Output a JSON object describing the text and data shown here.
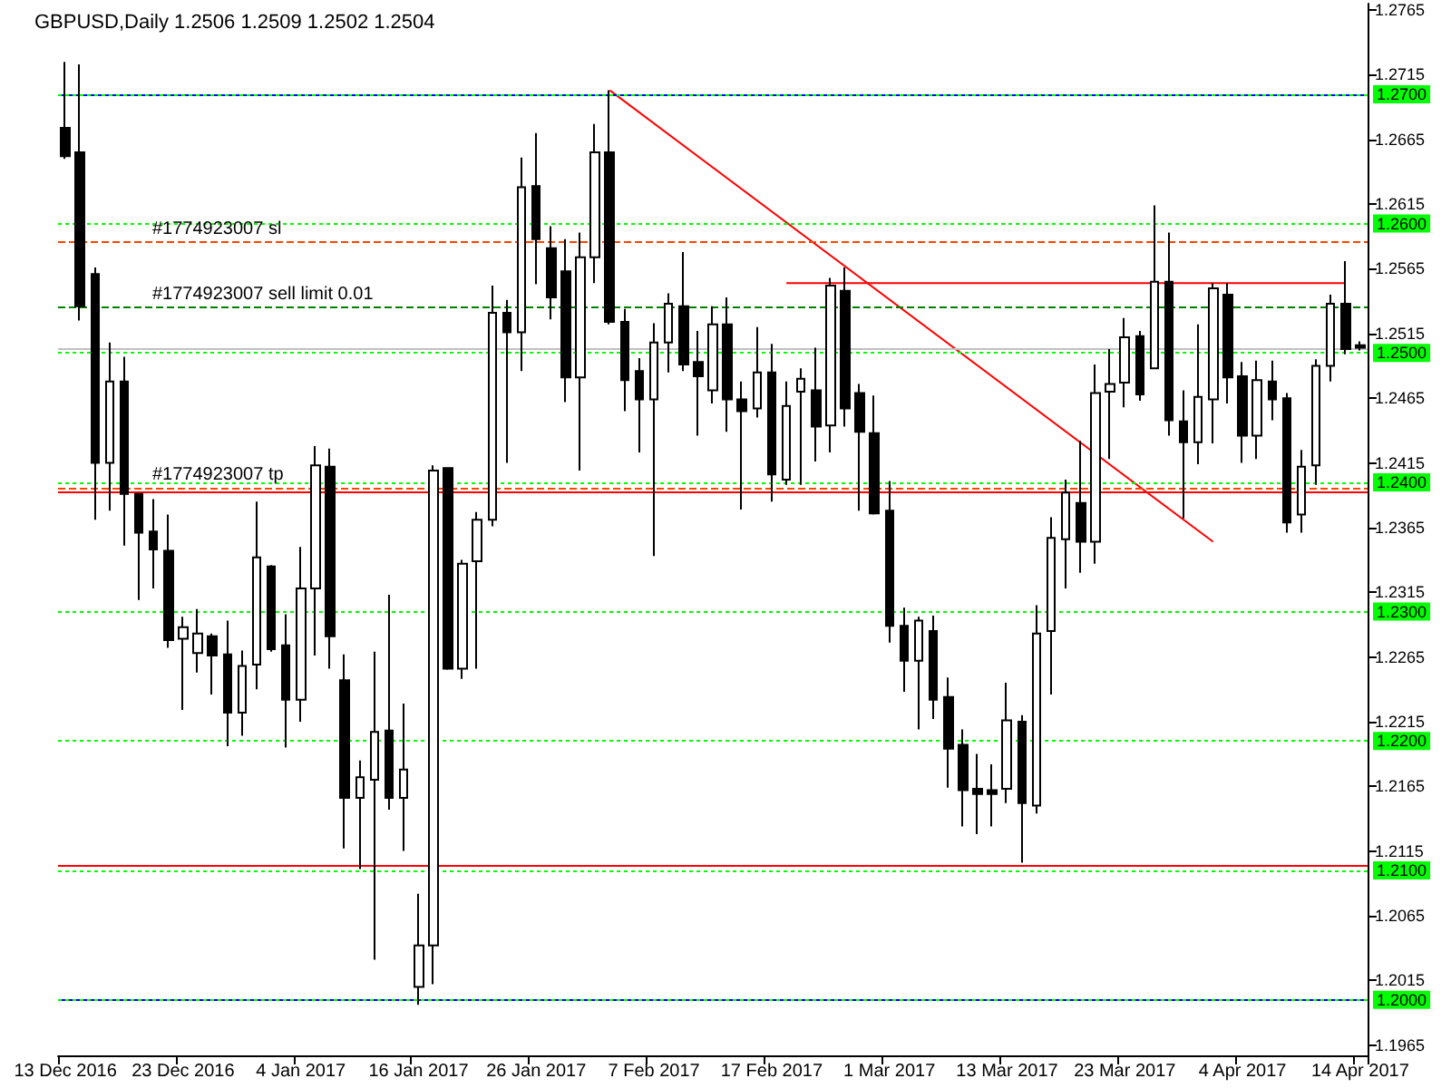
{
  "chart_data": {
    "type": "candlestick",
    "title": "GBPUSD,Daily 1.2506 1.2509 1.2502 1.2504",
    "categories": [
      "13 Dec 2016",
      null,
      null,
      null,
      null,
      null,
      null,
      null,
      "23 Dec 2016",
      null,
      null,
      null,
      null,
      null,
      null,
      null,
      "4 Jan 2017",
      null,
      null,
      null,
      null,
      null,
      null,
      null,
      "16 Jan 2017",
      null,
      null,
      null,
      null,
      null,
      null,
      null,
      "26 Jan 2017",
      null,
      null,
      null,
      null,
      null,
      null,
      null,
      "7 Feb 2017",
      null,
      null,
      null,
      null,
      null,
      null,
      null,
      "17 Feb 2017",
      null,
      null,
      null,
      null,
      null,
      null,
      null,
      "1 Mar 2017",
      null,
      null,
      null,
      null,
      null,
      null,
      null,
      "13 Mar 2017",
      null,
      null,
      null,
      null,
      null,
      null,
      null,
      "23 Mar 2017",
      null,
      null,
      null,
      null,
      null,
      null,
      null,
      "4 Apr 2017",
      null,
      null,
      null,
      null,
      null,
      null,
      null,
      "14 Apr 2017"
    ],
    "color": "#000000",
    "ohlc": [
      [
        1.2674,
        1.2725,
        1.265,
        1.2652
      ],
      [
        1.2655,
        1.2723,
        1.2525,
        1.2536
      ],
      [
        1.2561,
        1.2566,
        1.2371,
        1.2415
      ],
      [
        1.2415,
        1.2508,
        1.2378,
        1.2478
      ],
      [
        1.2478,
        1.2497,
        1.2351,
        1.2391
      ],
      [
        1.2391,
        1.2391,
        1.2309,
        1.2361
      ],
      [
        1.2362,
        1.2387,
        1.2318,
        1.2348
      ],
      [
        1.2347,
        1.2375,
        1.2272,
        1.2278
      ],
      [
        1.2279,
        1.2296,
        1.2224,
        1.2288
      ],
      [
        1.2268,
        1.2302,
        1.2253,
        1.2283
      ],
      [
        1.2281,
        1.2283,
        1.2236,
        1.2266
      ],
      [
        1.2267,
        1.2293,
        1.2196,
        1.2222
      ],
      [
        1.2222,
        1.227,
        1.2204,
        1.2258
      ],
      [
        1.2259,
        1.2385,
        1.224,
        1.2342
      ],
      [
        1.2335,
        1.2336,
        1.2269,
        1.2271
      ],
      [
        1.2274,
        1.2298,
        1.2195,
        1.2232
      ],
      [
        1.2232,
        1.235,
        1.2215,
        1.2318
      ],
      [
        1.2318,
        1.2428,
        1.2266,
        1.2413
      ],
      [
        1.2412,
        1.2426,
        1.2256,
        1.2281
      ],
      [
        1.2247,
        1.2267,
        1.2117,
        1.2156
      ],
      [
        1.2156,
        1.2185,
        1.2101,
        1.2172
      ],
      [
        1.217,
        1.2269,
        1.2031,
        1.2207
      ],
      [
        1.2208,
        1.2313,
        1.2147,
        1.2156
      ],
      [
        1.2156,
        1.2229,
        1.2115,
        1.2178
      ],
      [
        1.201,
        1.2082,
        1.1996,
        1.2042
      ],
      [
        1.2042,
        1.2413,
        1.2012,
        1.2409
      ],
      [
        1.2411,
        1.2411,
        1.2255,
        1.2256
      ],
      [
        1.2256,
        1.234,
        1.2248,
        1.2337
      ],
      [
        1.2339,
        1.2377,
        1.2256,
        1.2371
      ],
      [
        1.2371,
        1.2552,
        1.2366,
        1.2531
      ],
      [
        1.2531,
        1.2541,
        1.2415,
        1.2516
      ],
      [
        1.2516,
        1.2651,
        1.2486,
        1.2628
      ],
      [
        1.2629,
        1.267,
        1.2553,
        1.2588
      ],
      [
        1.2581,
        1.2598,
        1.2526,
        1.2543
      ],
      [
        1.2563,
        1.2588,
        1.2462,
        1.2481
      ],
      [
        1.2481,
        1.2593,
        1.2409,
        1.2574
      ],
      [
        1.2574,
        1.2677,
        1.2554,
        1.2655
      ],
      [
        1.2655,
        1.2703,
        1.2522,
        1.2524
      ],
      [
        1.2524,
        1.2534,
        1.2455,
        1.2479
      ],
      [
        1.2486,
        1.2496,
        1.2423,
        1.2464
      ],
      [
        1.2464,
        1.2523,
        1.2343,
        1.2508
      ],
      [
        1.2508,
        1.2546,
        1.2485,
        1.2538
      ],
      [
        1.2536,
        1.2578,
        1.2486,
        1.2491
      ],
      [
        1.2493,
        1.2517,
        1.2436,
        1.2482
      ],
      [
        1.2471,
        1.2536,
        1.2461,
        1.2522
      ],
      [
        1.2522,
        1.2543,
        1.2439,
        1.2464
      ],
      [
        1.2464,
        1.2478,
        1.2379,
        1.2455
      ],
      [
        1.2457,
        1.252,
        1.245,
        1.2485
      ],
      [
        1.2485,
        1.2507,
        1.2385,
        1.2406
      ],
      [
        1.2402,
        1.2478,
        1.2398,
        1.2459
      ],
      [
        1.247,
        1.2488,
        1.2398,
        1.248
      ],
      [
        1.2471,
        1.2504,
        1.2416,
        1.2443
      ],
      [
        1.2444,
        1.2558,
        1.2423,
        1.2552
      ],
      [
        1.2548,
        1.2566,
        1.2443,
        1.2457
      ],
      [
        1.2469,
        1.2476,
        1.2378,
        1.2439
      ],
      [
        1.2438,
        1.2467,
        1.2375,
        1.2376
      ],
      [
        1.2378,
        1.2401,
        1.2276,
        1.2289
      ],
      [
        1.2289,
        1.2303,
        1.2238,
        1.2262
      ],
      [
        1.2262,
        1.2296,
        1.2209,
        1.2293
      ],
      [
        1.2285,
        1.2297,
        1.2217,
        1.2232
      ],
      [
        1.2234,
        1.2249,
        1.2164,
        1.2194
      ],
      [
        1.2197,
        1.2209,
        1.2134,
        1.2162
      ],
      [
        1.2163,
        1.219,
        1.2128,
        1.2159
      ],
      [
        1.2162,
        1.2182,
        1.2134,
        1.2159
      ],
      [
        1.2163,
        1.2245,
        1.2152,
        1.2216
      ],
      [
        1.2215,
        1.222,
        1.2106,
        1.2152
      ],
      [
        1.215,
        1.2305,
        1.2144,
        1.2283
      ],
      [
        1.2285,
        1.2373,
        1.2236,
        1.2357
      ],
      [
        1.2356,
        1.2402,
        1.2318,
        1.2392
      ],
      [
        1.2384,
        1.2432,
        1.233,
        1.2354
      ],
      [
        1.2354,
        1.2491,
        1.2337,
        1.2469
      ],
      [
        1.247,
        1.2503,
        1.2418,
        1.2476
      ],
      [
        1.2477,
        1.2527,
        1.2458,
        1.2512
      ],
      [
        1.2513,
        1.2517,
        1.2463,
        1.2468
      ],
      [
        1.2488,
        1.2614,
        1.2488,
        1.2555
      ],
      [
        1.2555,
        1.2593,
        1.2436,
        1.2448
      ],
      [
        1.2447,
        1.2471,
        1.2372,
        1.2431
      ],
      [
        1.2431,
        1.2522,
        1.2414,
        1.2466
      ],
      [
        1.2464,
        1.2554,
        1.243,
        1.255
      ],
      [
        1.2545,
        1.2554,
        1.2461,
        1.2481
      ],
      [
        1.2482,
        1.2493,
        1.2415,
        1.2436
      ],
      [
        1.2436,
        1.2494,
        1.2418,
        1.2479
      ],
      [
        1.2478,
        1.2494,
        1.2448,
        1.2464
      ],
      [
        1.2465,
        1.2469,
        1.2361,
        1.2369
      ],
      [
        1.2375,
        1.2425,
        1.2361,
        1.2412
      ],
      [
        1.2413,
        1.2495,
        1.2398,
        1.249
      ],
      [
        1.249,
        1.2545,
        1.2478,
        1.2538
      ],
      [
        1.2538,
        1.2571,
        1.2499,
        1.2503
      ],
      [
        1.2506,
        1.2509,
        1.2502,
        1.2504
      ]
    ],
    "series": [
      {
        "type": "line",
        "color": "#ff0000",
        "values": [
          null,
          null,
          null,
          null,
          null,
          null,
          null,
          null,
          null,
          null,
          null,
          null,
          null,
          null,
          null,
          null,
          null,
          null,
          null,
          null,
          null,
          null,
          null,
          null,
          null,
          null,
          null,
          null,
          null,
          null,
          null,
          null,
          null,
          null,
          null,
          null,
          null,
          1.2703,
          null,
          null,
          null,
          null,
          null,
          null,
          null,
          null,
          null,
          null,
          null,
          null,
          null,
          null,
          null,
          null,
          null,
          null,
          null,
          null,
          null,
          null,
          null,
          null,
          null,
          null,
          null,
          null,
          null,
          null,
          null,
          null,
          null,
          null,
          null,
          null,
          null,
          null,
          null,
          null,
          1.2354,
          null,
          null,
          null,
          null,
          null,
          null,
          null,
          null,
          null,
          null
        ]
      },
      {
        "type": "line",
        "color": "#ff0000",
        "values": [
          null,
          null,
          null,
          null,
          null,
          null,
          null,
          null,
          null,
          null,
          null,
          null,
          null,
          null,
          null,
          null,
          null,
          null,
          null,
          null,
          null,
          null,
          null,
          null,
          null,
          null,
          null,
          null,
          null,
          null,
          null,
          null,
          null,
          null,
          null,
          null,
          null,
          null,
          null,
          null,
          null,
          null,
          null,
          null,
          null,
          null,
          null,
          null,
          null,
          1.2554,
          null,
          null,
          null,
          null,
          null,
          null,
          null,
          null,
          null,
          null,
          null,
          null,
          null,
          null,
          null,
          null,
          null,
          null,
          null,
          null,
          null,
          null,
          null,
          null,
          null,
          null,
          null,
          null,
          null,
          null,
          null,
          null,
          null,
          null,
          null,
          null,
          null,
          1.2554,
          null
        ]
      }
    ],
    "ylim": [
      1.1957,
      1.277
    ],
    "yticks": [
      1.1965,
      1.2015,
      1.2065,
      1.2115,
      1.2165,
      1.2215,
      1.2265,
      1.2315,
      1.2365,
      1.2415,
      1.2465,
      1.2515,
      1.2565,
      1.2615,
      1.2665,
      1.2715,
      1.2765
    ],
    "ref_lines": [
      {
        "axis": "y",
        "value": 1.27,
        "color": "#0000ff",
        "line_style": "solid"
      },
      {
        "axis": "y",
        "value": 1.2,
        "color": "#0000ff",
        "line_style": "solid"
      },
      {
        "axis": "y",
        "value": 1.27,
        "label": "1.2700",
        "color": "#00ff00",
        "line_style": "dotted"
      },
      {
        "axis": "y",
        "value": 1.26,
        "label": "1.2600",
        "color": "#00ff00",
        "line_style": "dotted"
      },
      {
        "axis": "y",
        "value": 1.25,
        "label": "1.2500",
        "color": "#00ff00",
        "line_style": "dotted"
      },
      {
        "axis": "y",
        "value": 1.24,
        "label": "1.2400",
        "color": "#00ff00",
        "line_style": "dotted"
      },
      {
        "axis": "y",
        "value": 1.23,
        "label": "1.2300",
        "color": "#00ff00",
        "line_style": "dotted"
      },
      {
        "axis": "y",
        "value": 1.22,
        "label": "1.2200",
        "color": "#00ff00",
        "line_style": "dotted"
      },
      {
        "axis": "y",
        "value": 1.21,
        "label": "1.2100",
        "color": "#00ff00",
        "line_style": "dotted"
      },
      {
        "axis": "y",
        "value": 1.2,
        "label": "1.2000",
        "color": "#00ff00",
        "line_style": "dotted"
      },
      {
        "axis": "y",
        "value": 1.2586,
        "label": "#1774923007 sl",
        "color": "#ff4500",
        "line_style": "dashed"
      },
      {
        "axis": "y",
        "value": 1.2535,
        "label": "#1774923007 sell limit 0.01",
        "color": "#008000",
        "line_style": "dashed"
      },
      {
        "axis": "y",
        "value": 1.2396,
        "label": "#1774923007 tp",
        "color": "#ff4500",
        "line_style": "dashed"
      },
      {
        "axis": "y",
        "value": 1.2392,
        "color": "#ff0000",
        "line_style": "solid"
      },
      {
        "axis": "y",
        "value": 1.2104,
        "color": "#ff0000",
        "line_style": "solid"
      },
      {
        "axis": "y",
        "value": 1.2504,
        "color": "#c0c0c0",
        "line_style": "solid"
      }
    ]
  }
}
